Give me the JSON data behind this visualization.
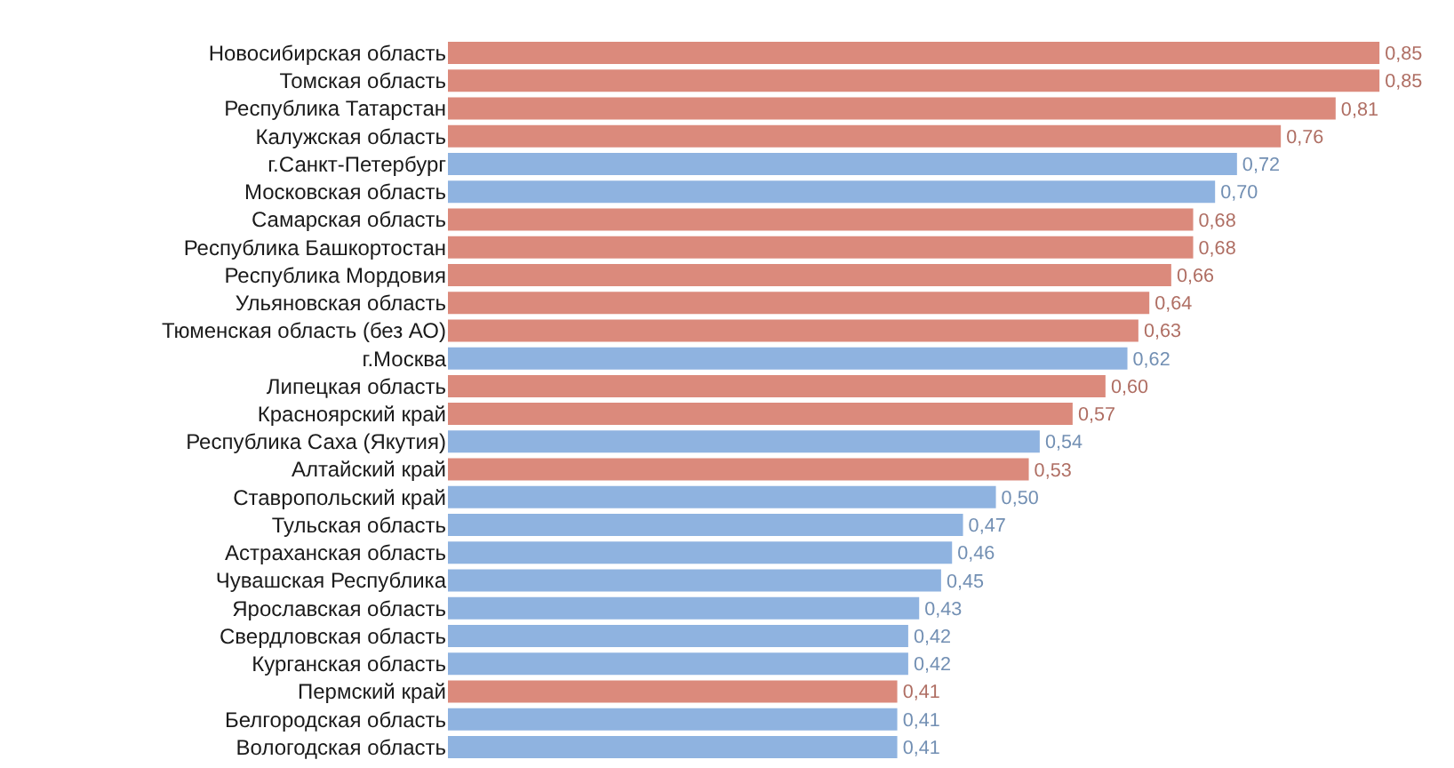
{
  "chart_data": {
    "type": "bar",
    "orientation": "horizontal",
    "categories": [
      "Новосибирская область",
      "Томская область",
      "Республика Татарстан",
      "Калужская область",
      "г.Санкт-Петербург",
      "Московская область",
      "Самарская область",
      "Республика Башкортостан",
      "Республика Мордовия",
      "Ульяновская область",
      "Тюменская область (без АО)",
      "г.Москва",
      "Липецкая область",
      "Красноярский край",
      "Республика Саха (Якутия)",
      "Алтайский край",
      "Ставропольский край",
      "Тульская область",
      "Астраханская область",
      "Чувашская Республика",
      "Ярославская область",
      "Свердловская область",
      "Курганская область",
      "Пермский край",
      "Белгородская область",
      "Вологодская область"
    ],
    "values": [
      0.85,
      0.85,
      0.81,
      0.76,
      0.72,
      0.7,
      0.68,
      0.68,
      0.66,
      0.64,
      0.63,
      0.62,
      0.6,
      0.57,
      0.54,
      0.53,
      0.5,
      0.47,
      0.46,
      0.45,
      0.43,
      0.42,
      0.42,
      0.41,
      0.41,
      0.41
    ],
    "value_labels": [
      "0,85",
      "0,85",
      "0,81",
      "0,76",
      "0,72",
      "0,70",
      "0,68",
      "0,68",
      "0,66",
      "0,64",
      "0,63",
      "0,62",
      "0,60",
      "0,57",
      "0,54",
      "0,53",
      "0,50",
      "0,47",
      "0,46",
      "0,45",
      "0,43",
      "0,42",
      "0,42",
      "0,41",
      "0,41",
      "0,41"
    ],
    "colors": [
      "#db8a7c",
      "#db8a7c",
      "#db8a7c",
      "#db8a7c",
      "#8fb3e0",
      "#8fb3e0",
      "#db8a7c",
      "#db8a7c",
      "#db8a7c",
      "#db8a7c",
      "#db8a7c",
      "#8fb3e0",
      "#db8a7c",
      "#db8a7c",
      "#8fb3e0",
      "#db8a7c",
      "#8fb3e0",
      "#8fb3e0",
      "#8fb3e0",
      "#8fb3e0",
      "#8fb3e0",
      "#8fb3e0",
      "#8fb3e0",
      "#db8a7c",
      "#8fb3e0",
      "#8fb3e0"
    ],
    "legend": false
  }
}
